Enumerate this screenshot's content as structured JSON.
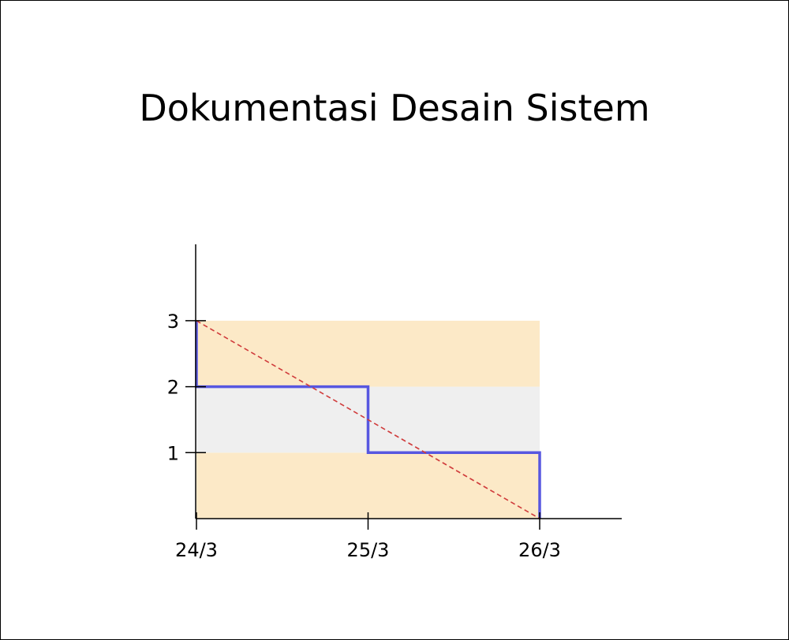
{
  "chart_data": {
    "type": "line",
    "title": "Dokumentasi Desain Sistem",
    "xlabel": "",
    "ylabel": "",
    "x_ticks": [
      "24/3",
      "25/3",
      "26/3"
    ],
    "y_ticks": [
      "1",
      "2",
      "3"
    ],
    "ylim": [
      0,
      3
    ],
    "grid": false,
    "bands": [
      {
        "y_from": 0,
        "y_to": 1,
        "color": "#fce9c7"
      },
      {
        "y_from": 1,
        "y_to": 2,
        "color": "#efefef"
      },
      {
        "y_from": 2,
        "y_to": 3,
        "color": "#fce9c7"
      }
    ],
    "series": [
      {
        "style": "step",
        "color": "#5757e0",
        "points": [
          [
            "24/3",
            3
          ],
          [
            "24/3",
            2
          ],
          [
            "25/3",
            2
          ],
          [
            "25/3",
            1
          ],
          [
            "26/3",
            1
          ],
          [
            "26/3",
            0
          ]
        ]
      },
      {
        "style": "dashed",
        "color": "#d03b3b",
        "points": [
          [
            "24/3",
            3
          ],
          [
            "26/3",
            0
          ]
        ]
      }
    ]
  }
}
